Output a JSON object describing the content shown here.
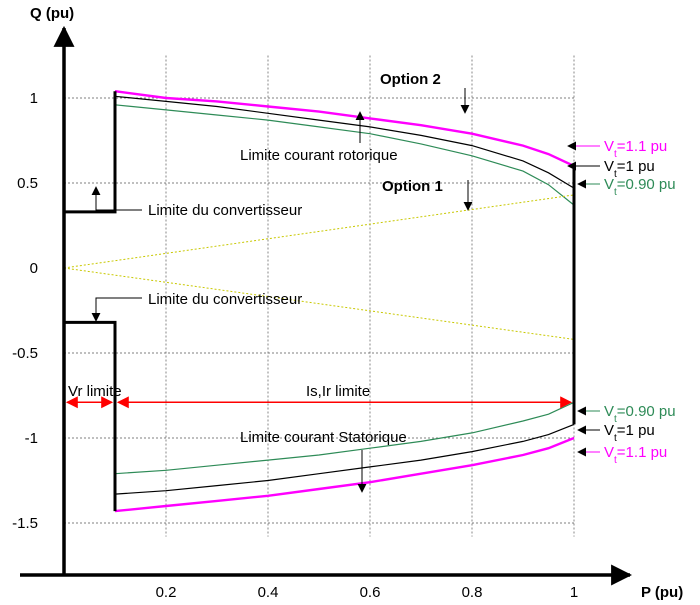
{
  "chart_data": {
    "type": "line",
    "title": "",
    "xlabel": "P (pu)",
    "ylabel": "Q (pu)",
    "xlim": [
      0,
      1.06
    ],
    "ylim": [
      -1.68,
      1.25
    ],
    "x_ticks": [
      {
        "value": 0.2,
        "label": "0.2"
      },
      {
        "value": 0.4,
        "label": "0.4"
      },
      {
        "value": 0.6,
        "label": "0.6"
      },
      {
        "value": 0.8,
        "label": "0.8"
      },
      {
        "value": 1.0,
        "label": "1"
      }
    ],
    "y_ticks": [
      {
        "value": 1,
        "label": "1"
      },
      {
        "value": 0.5,
        "label": "0.5"
      },
      {
        "value": 0,
        "label": "0"
      },
      {
        "value": -0.5,
        "label": "-0.5"
      },
      {
        "value": -1,
        "label": "-1"
      },
      {
        "value": -1.5,
        "label": "-1.5"
      }
    ],
    "grid": true,
    "series": [
      {
        "name": "V_t=1.1 pu (rotor)",
        "color": "#ff00ff",
        "x": [
          0.1,
          0.2,
          0.3,
          0.4,
          0.5,
          0.6,
          0.7,
          0.8,
          0.9,
          0.95,
          1.0
        ],
        "y": [
          1.04,
          1.0,
          0.98,
          0.95,
          0.92,
          0.88,
          0.84,
          0.79,
          0.72,
          0.67,
          0.6
        ]
      },
      {
        "name": "V_t=1 pu (rotor)",
        "color": "#000000",
        "x": [
          0.1,
          0.2,
          0.3,
          0.4,
          0.5,
          0.6,
          0.7,
          0.8,
          0.9,
          0.95,
          1.0
        ],
        "y": [
          1.01,
          0.98,
          0.95,
          0.91,
          0.87,
          0.83,
          0.78,
          0.72,
          0.63,
          0.56,
          0.47
        ]
      },
      {
        "name": "V_t=0.90 pu (rotor)",
        "color": "#2e8b57",
        "x": [
          0.1,
          0.2,
          0.3,
          0.4,
          0.5,
          0.6,
          0.7,
          0.8,
          0.9,
          0.95,
          1.0
        ],
        "y": [
          0.96,
          0.93,
          0.9,
          0.87,
          0.83,
          0.79,
          0.73,
          0.66,
          0.57,
          0.49,
          0.37
        ]
      },
      {
        "name": "V_t=0.90 pu (stator)",
        "color": "#2e8b57",
        "x": [
          0.1,
          0.2,
          0.3,
          0.4,
          0.5,
          0.6,
          0.7,
          0.8,
          0.9,
          0.95,
          1.0
        ],
        "y": [
          -1.21,
          -1.19,
          -1.16,
          -1.13,
          -1.1,
          -1.06,
          -1.02,
          -0.97,
          -0.9,
          -0.86,
          -0.79
        ]
      },
      {
        "name": "V_t=1 pu (stator)",
        "color": "#000000",
        "x": [
          0.1,
          0.2,
          0.3,
          0.4,
          0.5,
          0.6,
          0.7,
          0.8,
          0.9,
          0.95,
          1.0
        ],
        "y": [
          -1.33,
          -1.31,
          -1.28,
          -1.25,
          -1.21,
          -1.17,
          -1.13,
          -1.08,
          -1.02,
          -0.98,
          -0.92
        ]
      },
      {
        "name": "V_t=1.1 pu (stator)",
        "color": "#ff00ff",
        "x": [
          0.1,
          0.2,
          0.3,
          0.4,
          0.5,
          0.6,
          0.7,
          0.8,
          0.9,
          0.95,
          1.0
        ],
        "y": [
          -1.43,
          -1.4,
          -1.37,
          -1.34,
          -1.3,
          -1.26,
          -1.21,
          -1.16,
          -1.1,
          -1.06,
          -1.0
        ]
      },
      {
        "name": "Option 1 (upper)",
        "color": "#c8c800",
        "dashed": true,
        "x": [
          0,
          1.0
        ],
        "y": [
          0,
          0.43
        ]
      },
      {
        "name": "Option 1 (lower)",
        "color": "#c8c800",
        "dashed": true,
        "x": [
          0,
          1.0
        ],
        "y": [
          0,
          -0.42
        ]
      }
    ],
    "limits": [
      {
        "name": "converter-upper",
        "color": "#000000",
        "x": [
          0,
          0.1,
          0.1,
          0.1
        ],
        "y": [
          0.33,
          0.33,
          0.33,
          1.04
        ]
      },
      {
        "name": "converter-lower",
        "color": "#000000",
        "x": [
          0,
          0.1,
          0.1
        ],
        "y": [
          -0.32,
          -0.32,
          -1.43
        ]
      },
      {
        "name": "stator-active-limit",
        "color": "#000000",
        "x": [
          1.0,
          1.0
        ],
        "y": [
          0.6,
          -0.92
        ]
      }
    ],
    "annotations": {
      "option2": "Option 2",
      "option1": "Option 1",
      "rotor_limit": "Limite courant rotorique",
      "stator_limit": "Limite courant Statorique",
      "converter_limit_upper": "Limite du convertisseur",
      "converter_limit_lower": "Limite du convertisseur",
      "vr_limit": "Vr limite",
      "isir_limit": "Is,Ir limite",
      "vt_labels": [
        {
          "id": "top-1.1",
          "base": "V",
          "sub": "t",
          "value": "=1.1 pu",
          "color": "#ff00ff"
        },
        {
          "id": "top-1",
          "base": "V",
          "sub": "t",
          "value": "=1 pu",
          "color": "#000000"
        },
        {
          "id": "top-0.90",
          "base": "V",
          "sub": "t",
          "value": "=0.90 pu",
          "color": "#2e8b57"
        },
        {
          "id": "bot-0.90",
          "base": "V",
          "sub": "t",
          "value": "=0.90 pu",
          "color": "#2e8b57"
        },
        {
          "id": "bot-1",
          "base": "V",
          "sub": "t",
          "value": "=1 pu",
          "color": "#000000"
        },
        {
          "id": "bot-1.1",
          "base": "V",
          "sub": "t",
          "value": "=1.1 pu",
          "color": "#ff00ff"
        }
      ],
      "range_arrow_color": "#ff0000",
      "range_arrow_q": -0.79,
      "range_arrow_x": [
        0,
        0.1,
        1.0
      ]
    }
  }
}
